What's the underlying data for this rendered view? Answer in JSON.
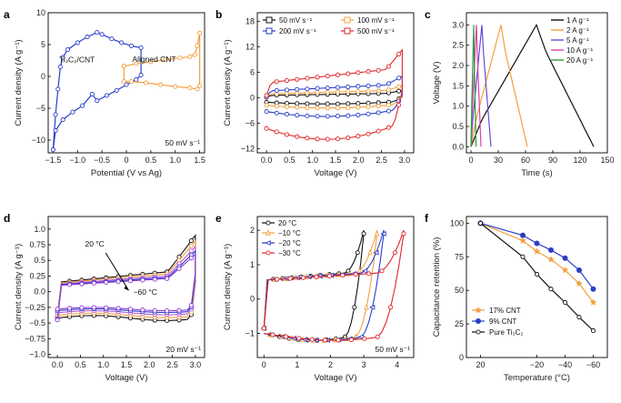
{
  "panels": [
    {
      "id": "a"
    },
    {
      "id": "b"
    },
    {
      "id": "c"
    },
    {
      "id": "d"
    },
    {
      "id": "e"
    },
    {
      "id": "f"
    }
  ],
  "chart_data": [
    {
      "panel": "a",
      "type": "line",
      "xlabel": "Potential (V vs Ag)",
      "ylabel": "Current density (A g⁻¹)",
      "xlim": [
        -1.6,
        1.6
      ],
      "ylim": [
        -12,
        10
      ],
      "xticks": [
        -1.5,
        -1.0,
        -0.5,
        0,
        0.5,
        1.0,
        1.5
      ],
      "xtick_labels": [
        "−1.5",
        "−1.0",
        "−0.5",
        "0",
        "0.5",
        "1.0",
        "1.5"
      ],
      "yticks": [
        -10,
        -5,
        0,
        5,
        10
      ],
      "ytick_labels": [
        "−10",
        "−5",
        "0",
        "5",
        "10"
      ],
      "annotation": "50 mV s⁻¹",
      "series": [
        {
          "name": "Ti₃C₂/CNT",
          "color": "#2a3ec9",
          "marker": "circle",
          "x": [
            -1.5,
            -1.45,
            -1.4,
            -1.35,
            -1.3,
            -1.2,
            -1.0,
            -0.8,
            -0.6,
            -0.5,
            -0.3,
            -0.1,
            0.1,
            0.3,
            0.3,
            0.2,
            0.0,
            -0.2,
            -0.4,
            -0.6,
            -0.7,
            -0.9,
            -1.1,
            -1.3,
            -1.45,
            -1.5
          ],
          "y": [
            -11.5,
            -6,
            -2,
            1.5,
            3,
            4.2,
            5.3,
            6.2,
            6.9,
            6.6,
            5.9,
            5.3,
            4.8,
            4.5,
            0.2,
            -0.5,
            -1.3,
            -2.2,
            -3.0,
            -3.8,
            -2.8,
            -4.6,
            -5.6,
            -6.8,
            -8.5,
            -11.5
          ]
        },
        {
          "name": "Aligned CNT",
          "color": "#f2a040",
          "marker": "circle",
          "x": [
            -0.05,
            0.2,
            0.5,
            0.8,
            1.1,
            1.3,
            1.4,
            1.45,
            1.5,
            1.5,
            1.45,
            1.3,
            1.0,
            0.7,
            0.4,
            0.1,
            -0.05,
            -0.05
          ],
          "y": [
            1.6,
            2.0,
            2.3,
            2.6,
            2.9,
            3.1,
            3.4,
            4.8,
            6.8,
            -1.5,
            -2.0,
            -1.8,
            -1.6,
            -1.3,
            -1.0,
            -0.8,
            -0.8,
            1.6
          ]
        }
      ]
    },
    {
      "panel": "b",
      "type": "line",
      "xlabel": "Voltage (V)",
      "ylabel": "Current density (A g⁻¹)",
      "xlim": [
        -0.2,
        3.2
      ],
      "ylim": [
        -13,
        20
      ],
      "xticks": [
        0,
        0.5,
        1.0,
        1.5,
        2.0,
        2.5,
        3.0
      ],
      "xtick_labels": [
        "0.0",
        "0.5",
        "1.0",
        "1.5",
        "2.0",
        "2.5",
        "3.0"
      ],
      "yticks": [
        -12,
        -6,
        0,
        6,
        12,
        18
      ],
      "ytick_labels": [
        "−12",
        "−6",
        "0",
        "6",
        "12",
        "18"
      ],
      "legend": "top",
      "series": [
        {
          "name": "50 mV s⁻¹",
          "color": "#111111",
          "scale": 0.15
        },
        {
          "name": "100 mV s⁻¹",
          "color": "#f2a040",
          "scale": 0.25
        },
        {
          "name": "200 mV s⁻¹",
          "color": "#2a3ec9",
          "scale": 0.45
        },
        {
          "name": "500 mV s⁻¹",
          "color": "#e0262b",
          "scale": 1.0
        }
      ]
    },
    {
      "panel": "c",
      "type": "line",
      "xlabel": "Time (s)",
      "ylabel": "Voltage (V)",
      "xlim": [
        -5,
        150
      ],
      "ylim": [
        -0.15,
        3.3
      ],
      "xticks": [
        0,
        30,
        60,
        90,
        120,
        150
      ],
      "xtick_labels": [
        "0",
        "30",
        "60",
        "90",
        "120",
        "150"
      ],
      "yticks": [
        0,
        0.5,
        1.0,
        1.5,
        2.0,
        2.5,
        3.0
      ],
      "ytick_labels": [
        "0.0",
        "0.5",
        "1.0",
        "1.5",
        "2.0",
        "2.5",
        "3.0"
      ],
      "legend": "right",
      "series": [
        {
          "name": "1 A g⁻¹",
          "color": "#111111",
          "x": [
            0,
            72,
            135
          ]
        },
        {
          "name": "2 A g⁻¹",
          "color": "#f2a040",
          "x": [
            0,
            33,
            62
          ]
        },
        {
          "name": "5 A g⁻¹",
          "color": "#6a4bd8",
          "x": [
            0,
            12,
            22
          ]
        },
        {
          "name": "10 A g⁻¹",
          "color": "#e040b0",
          "x": [
            0,
            6,
            11
          ]
        },
        {
          "name": "20 A g⁻¹",
          "color": "#2f9a3a",
          "x": [
            0,
            3,
            5.5
          ]
        }
      ]
    },
    {
      "panel": "d",
      "type": "line",
      "xlabel": "Voltage (V)",
      "ylabel": "Current density (A g⁻¹)",
      "xlim": [
        -0.2,
        3.2
      ],
      "ylim": [
        -1.05,
        1.2
      ],
      "xticks": [
        0,
        0.5,
        1.0,
        1.5,
        2.0,
        2.5,
        3.0
      ],
      "xtick_labels": [
        "0.0",
        "0.5",
        "1.0",
        "1.5",
        "2.0",
        "2.5",
        "3.0"
      ],
      "yticks": [
        -1.0,
        -0.75,
        -0.5,
        -0.25,
        0,
        0.25,
        0.5,
        0.75,
        1.0
      ],
      "ytick_labels": [
        "−1.0",
        "−0.75",
        "−0.5",
        "−0.25",
        "0.0",
        "0.25",
        "0.5",
        "0.75",
        "1.0"
      ],
      "annotation": "20 mV s⁻¹",
      "label_top": "20 °C",
      "label_bottom": "−60 °C",
      "series": [
        {
          "color": "#111111",
          "scale": 1.0
        },
        {
          "color": "#f2a040",
          "scale": 0.9
        },
        {
          "color": "#c05bd8",
          "scale": 0.8
        },
        {
          "color": "#2a3ec9",
          "scale": 0.72
        },
        {
          "color": "#8a3ad0",
          "scale": 0.66
        }
      ]
    },
    {
      "panel": "e",
      "type": "line",
      "xlabel": "Voltage (V)",
      "ylabel": "Current density (A g⁻¹)",
      "xlim": [
        -0.2,
        4.5
      ],
      "ylim": [
        -1.7,
        2.4
      ],
      "xticks": [
        0,
        1,
        2,
        3,
        4
      ],
      "xtick_labels": [
        "0",
        "1",
        "2",
        "3",
        "4"
      ],
      "yticks": [
        -1,
        0,
        1,
        2
      ],
      "ytick_labels": [
        "−1",
        "0",
        "1",
        "2"
      ],
      "annotation": "50 mV s⁻¹",
      "legend": "top-left",
      "series": [
        {
          "name": "20 °C",
          "color": "#111111",
          "vmax": 3.0,
          "marker": "circle"
        },
        {
          "name": "−10 °C",
          "color": "#f2a040",
          "vmax": 3.4,
          "marker": "triangle-up"
        },
        {
          "name": "−20 °C",
          "color": "#2a3ec9",
          "vmax": 3.6,
          "marker": "triangle-left"
        },
        {
          "name": "−30 °C",
          "color": "#e0262b",
          "vmax": 4.2,
          "marker": "circle"
        }
      ]
    },
    {
      "panel": "f",
      "type": "line",
      "xlabel": "Temperature (°C)",
      "ylabel": "Capacitance retention (%)",
      "xlim": [
        30,
        -70
      ],
      "ylim": [
        0,
        105
      ],
      "xticks": [
        20,
        -20,
        -40,
        -60
      ],
      "xtick_labels": [
        "20",
        "−20",
        "−40",
        "−60"
      ],
      "yticks": [
        0,
        25,
        50,
        75,
        100
      ],
      "ytick_labels": [
        "0",
        "25",
        "50",
        "75",
        "100"
      ],
      "legend": "bottom-left",
      "x": [
        20,
        -10,
        -20,
        -30,
        -40,
        -50,
        -60
      ],
      "series": [
        {
          "name": "17% CNT",
          "color": "#f2a040",
          "marker": "star",
          "values": [
            100,
            87,
            79,
            73,
            65,
            55,
            41
          ]
        },
        {
          "name": "9% CNT",
          "color": "#2a3ec9",
          "marker": "circle-filled",
          "values": [
            100,
            91,
            85,
            80,
            74,
            65,
            51
          ]
        },
        {
          "name": "Pure Ti₃C₂",
          "color": "#111111",
          "marker": "circle-open",
          "values": [
            100,
            75,
            62,
            51,
            41,
            30,
            20
          ]
        }
      ]
    }
  ]
}
